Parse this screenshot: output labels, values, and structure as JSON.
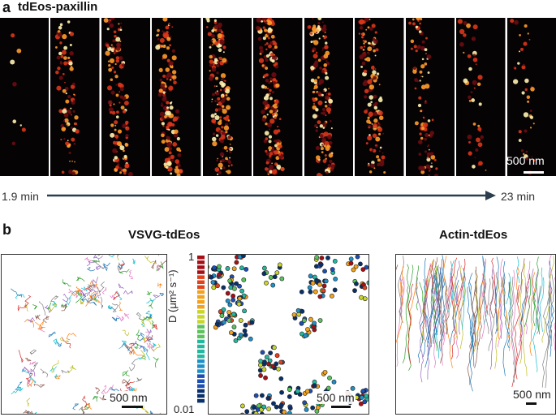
{
  "panel_a": {
    "letter": "a",
    "title": "tdEos-paxillin",
    "frame_count": 11,
    "scale_bar": "500 nm",
    "time_start": "1.9 min",
    "time_end": "23 min"
  },
  "panel_b": {
    "letter": "b",
    "vsvg_title": "VSVG-tdEos",
    "actin_title": "Actin-tdEos",
    "scale_bar_left": "500 nm",
    "scale_bar_middle": "500 nm",
    "scale_bar_right": "500 nm",
    "colorbar": {
      "max_label": "1",
      "min_label": "0.01",
      "axis_label": "D (μm² s⁻¹)"
    }
  },
  "colors": {
    "frame_background": "#050304",
    "track_palette": [
      "#d62728",
      "#1f77b4",
      "#2ca02c",
      "#17becf",
      "#9467bd",
      "#e377c2",
      "#ff7f0e",
      "#8c564b",
      "#7f7f7f",
      "#bcbd22"
    ],
    "colorbar_stops": [
      "#08306b",
      "#1c4fb5",
      "#1e90c8",
      "#22b8a0",
      "#5cc35c",
      "#c8d62a",
      "#f3a21b",
      "#e0421a",
      "#a50f15"
    ]
  }
}
